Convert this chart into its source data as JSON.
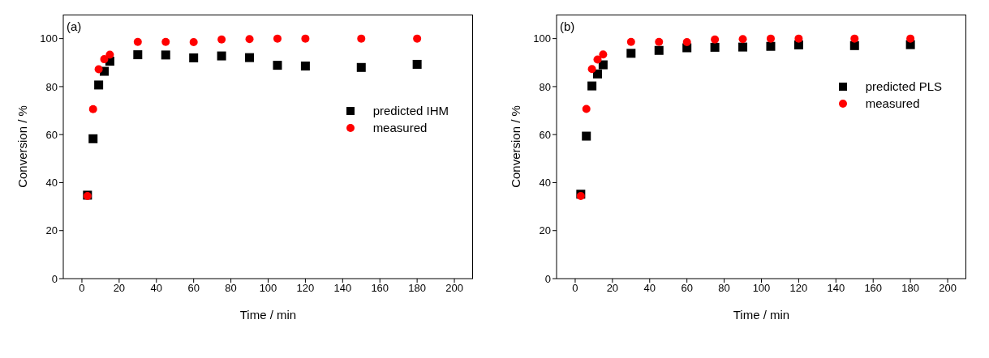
{
  "chart_data": [
    {
      "type": "scatter",
      "annotations": [
        "(a)"
      ],
      "xlabel": "Time / min",
      "ylabel": "Conversion / %",
      "x": [
        3,
        6,
        9,
        12,
        15,
        30,
        45,
        60,
        75,
        90,
        105,
        120,
        150,
        180
      ],
      "series": [
        {
          "name": "predicted IHM",
          "color": "#000000",
          "marker": "square",
          "values": [
            34.6,
            58.1,
            80.5,
            86.2,
            90.4,
            93.1,
            93.0,
            91.8,
            92.6,
            91.9,
            88.7,
            88.4,
            87.8,
            89.1
          ]
        },
        {
          "name": "measured",
          "color": "#ff0000",
          "marker": "circle",
          "values": [
            34.4,
            70.6,
            87.2,
            91.4,
            93.3,
            98.6,
            98.6,
            98.5,
            99.6,
            99.8,
            100,
            100,
            100,
            100
          ]
        }
      ],
      "xlim": [
        -10,
        210
      ],
      "xticks": [
        0,
        20,
        40,
        60,
        80,
        100,
        120,
        140,
        160,
        180,
        200
      ],
      "ylim": [
        0,
        110
      ],
      "yticks": [
        0,
        20,
        40,
        60,
        80,
        100
      ],
      "legend": "right",
      "grid": false
    },
    {
      "type": "scatter",
      "annotations": [
        "(b)"
      ],
      "xlabel": "Time / min",
      "ylabel": "Conversion / %",
      "x": [
        3,
        6,
        9,
        12,
        15,
        30,
        45,
        60,
        75,
        90,
        105,
        120,
        150,
        180
      ],
      "series": [
        {
          "name": "predicted PLS",
          "color": "#000000",
          "marker": "square",
          "values": [
            35.0,
            59.2,
            80.1,
            85.1,
            88.9,
            93.7,
            94.9,
            96.0,
            96.2,
            96.3,
            96.6,
            97.2,
            96.9,
            97.3
          ]
        },
        {
          "name": "measured",
          "color": "#ff0000",
          "marker": "circle",
          "values": [
            34.4,
            70.7,
            87.3,
            91.3,
            93.4,
            98.6,
            98.6,
            98.5,
            99.6,
            99.8,
            100,
            100,
            100,
            100
          ]
        }
      ],
      "xlim": [
        -10,
        210
      ],
      "xticks": [
        0,
        20,
        40,
        60,
        80,
        100,
        120,
        140,
        160,
        180,
        200
      ],
      "ylim": [
        0,
        110
      ],
      "yticks": [
        0,
        20,
        40,
        60,
        80,
        100
      ],
      "legend": "top right",
      "grid": false
    }
  ]
}
